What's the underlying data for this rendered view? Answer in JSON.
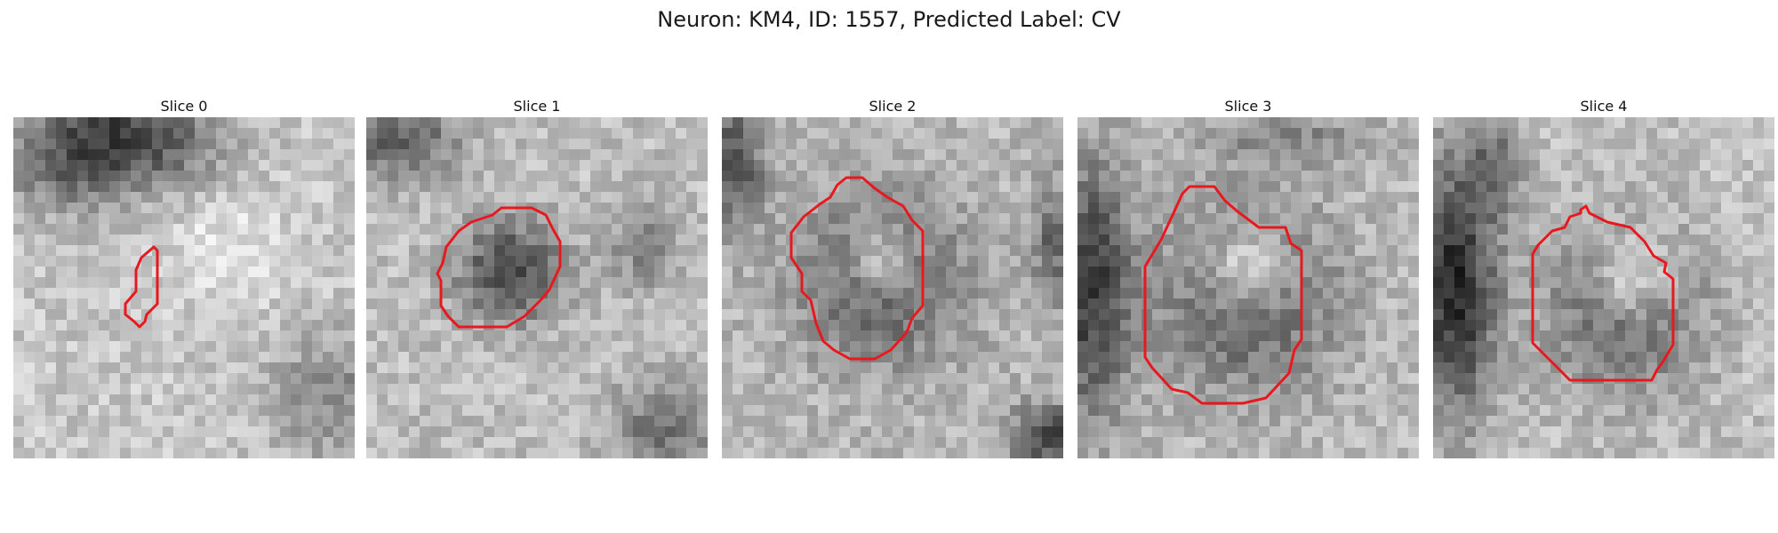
{
  "figure": {
    "title": "Neuron: KM4, ID: 1557, Predicted Label: CV"
  },
  "panels": [
    {
      "title": "Slice 0"
    },
    {
      "title": "Slice 1"
    },
    {
      "title": "Slice 2"
    },
    {
      "title": "Slice 3"
    },
    {
      "title": "Slice 4"
    }
  ],
  "colors": {
    "contour": "#e8191e",
    "background": "#ffffff"
  },
  "colormap": "grayscale"
}
